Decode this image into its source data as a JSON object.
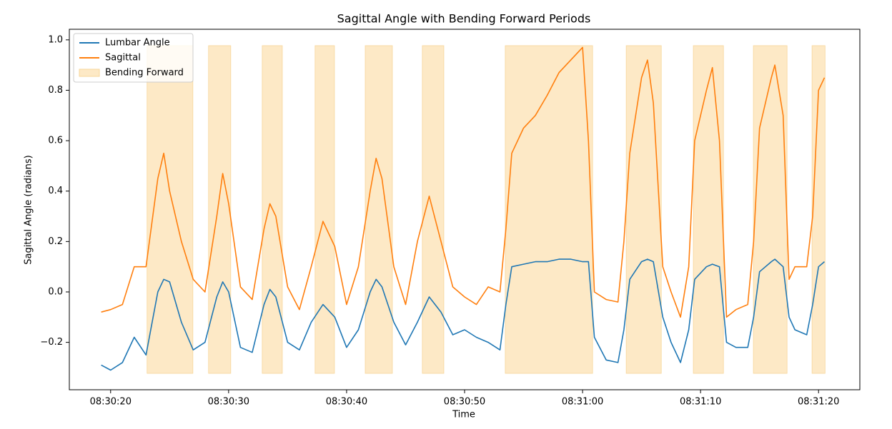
{
  "chart_data": {
    "type": "line",
    "title": "Sagittal Angle with Bending Forward Periods",
    "x_label": "Time",
    "y_label": "Sagittal Angle (radians)",
    "x": [
      19.2,
      20,
      21,
      22,
      23,
      24,
      24.5,
      25,
      26,
      27,
      28,
      29,
      29.5,
      30,
      31,
      32,
      33,
      33.5,
      34,
      35,
      36,
      37,
      38,
      39,
      40,
      41,
      42,
      42.5,
      43,
      44,
      45,
      46,
      47,
      48,
      49,
      50,
      51,
      52,
      53,
      53.5,
      54,
      55,
      56,
      57,
      58,
      59,
      60,
      60.5,
      61,
      62,
      63,
      63.5,
      64,
      65,
      65.5,
      66,
      66.8,
      67.5,
      68.3,
      69,
      69.5,
      70.5,
      71,
      71.6,
      72.2,
      73,
      74,
      74.5,
      75,
      76,
      76.3,
      77,
      77.5,
      78,
      79,
      79.5,
      80,
      80.5
    ],
    "series": [
      {
        "name": "Lumbar Angle",
        "color": "#1f77b4",
        "values": [
          -0.29,
          -0.31,
          -0.28,
          -0.18,
          -0.25,
          0.0,
          0.05,
          0.04,
          -0.12,
          -0.23,
          -0.2,
          -0.02,
          0.04,
          0.0,
          -0.22,
          -0.24,
          -0.05,
          0.01,
          -0.02,
          -0.2,
          -0.23,
          -0.12,
          -0.05,
          -0.1,
          -0.22,
          -0.15,
          0.0,
          0.05,
          0.02,
          -0.12,
          -0.21,
          -0.12,
          -0.02,
          -0.08,
          -0.17,
          -0.15,
          -0.18,
          -0.2,
          -0.23,
          -0.05,
          0.1,
          0.11,
          0.12,
          0.12,
          0.13,
          0.13,
          0.12,
          0.12,
          -0.18,
          -0.27,
          -0.28,
          -0.15,
          0.05,
          0.12,
          0.13,
          0.12,
          -0.1,
          -0.2,
          -0.28,
          -0.15,
          0.05,
          0.1,
          0.11,
          0.1,
          -0.2,
          -0.22,
          -0.22,
          -0.1,
          0.08,
          0.12,
          0.13,
          0.1,
          -0.1,
          -0.15,
          -0.17,
          -0.05,
          0.1,
          0.12
        ]
      },
      {
        "name": "Sagittal",
        "color": "#ff7f0e",
        "values": [
          -0.08,
          -0.07,
          -0.05,
          0.1,
          0.1,
          0.45,
          0.55,
          0.4,
          0.2,
          0.05,
          0.0,
          0.3,
          0.47,
          0.35,
          0.02,
          -0.03,
          0.25,
          0.35,
          0.3,
          0.02,
          -0.07,
          0.1,
          0.28,
          0.18,
          -0.05,
          0.1,
          0.4,
          0.53,
          0.45,
          0.1,
          -0.05,
          0.2,
          0.38,
          0.2,
          0.02,
          -0.02,
          -0.05,
          0.02,
          0.0,
          0.25,
          0.55,
          0.65,
          0.7,
          0.78,
          0.87,
          0.92,
          0.97,
          0.6,
          0.0,
          -0.03,
          -0.04,
          0.2,
          0.55,
          0.85,
          0.92,
          0.75,
          0.1,
          0.0,
          -0.1,
          0.1,
          0.6,
          0.8,
          0.89,
          0.6,
          -0.1,
          -0.07,
          -0.05,
          0.2,
          0.65,
          0.85,
          0.9,
          0.7,
          0.05,
          0.1,
          0.1,
          0.3,
          0.8,
          0.85
        ]
      }
    ],
    "spans": {
      "name": "Bending Forward",
      "color": "#fde9c6",
      "edge": "#f7d69a",
      "x": [
        [
          23.09,
          26.97
        ],
        [
          28.3,
          30.18
        ],
        [
          32.85,
          34.55
        ],
        [
          37.33,
          38.97
        ],
        [
          41.58,
          43.88
        ],
        [
          46.42,
          48.24
        ],
        [
          53.45,
          60.85
        ],
        [
          63.7,
          66.67
        ],
        [
          69.39,
          71.94
        ],
        [
          74.48,
          77.33
        ],
        [
          79.45,
          80.55
        ]
      ],
      "ylim": [
        -0.323,
        0.977
      ]
    },
    "xlim": [
      16.5,
      83.5
    ],
    "ylim": [
      -0.388,
      1.042
    ],
    "xticks": [
      {
        "value": 20,
        "label": "08:30:20"
      },
      {
        "value": 30,
        "label": "08:30:30"
      },
      {
        "value": 40,
        "label": "08:30:40"
      },
      {
        "value": 50,
        "label": "08:30:50"
      },
      {
        "value": 60,
        "label": "08:31:00"
      },
      {
        "value": 70,
        "label": "08:31:10"
      },
      {
        "value": 80,
        "label": "08:31:20"
      }
    ],
    "yticks": [
      {
        "value": -0.2,
        "label": "−0.2"
      },
      {
        "value": 0,
        "label": "0.0"
      },
      0.2,
      0.4,
      0.6,
      0.8,
      {
        "value": 1,
        "label": "1.0"
      }
    ],
    "legend": "upper left"
  }
}
